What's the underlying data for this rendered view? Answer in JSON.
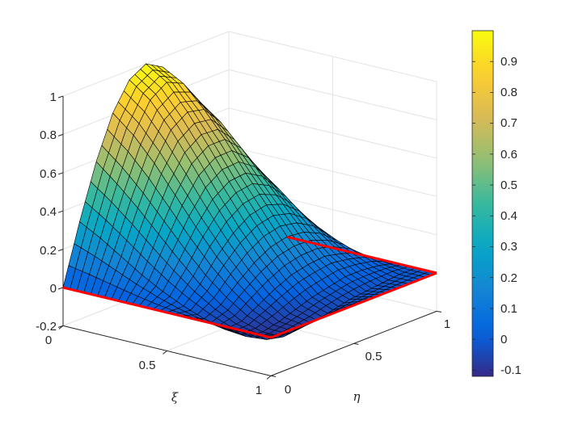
{
  "chart_data": {
    "type": "surface",
    "xlabel": "ξ",
    "ylabel": "η",
    "zlabel": "",
    "xlim": [
      0,
      1
    ],
    "ylim": [
      0,
      1
    ],
    "zlim": [
      -0.2,
      1
    ],
    "xticks": [
      "0",
      "0.5",
      "1"
    ],
    "yticks": [
      "0",
      "0.5",
      "1"
    ],
    "zticks": [
      "-0.2",
      "0",
      "0.2",
      "0.4",
      "0.6",
      "0.8",
      "1"
    ],
    "grid": true,
    "colormap": "parula",
    "clim": [
      -0.12,
      1.0
    ],
    "colorbar": {
      "position": "right",
      "ticks": [
        "-0.1",
        "0",
        "0.1",
        "0.2",
        "0.3",
        "0.4",
        "0.5",
        "0.6",
        "0.7",
        "0.8",
        "0.9"
      ]
    },
    "boundary_color": "#ff0000",
    "edge_color": "#000000",
    "x": [
      0,
      0.1,
      0.2,
      0.3,
      0.4,
      0.5,
      0.6,
      0.7,
      0.8,
      0.9,
      1.0
    ],
    "y": [
      0,
      0.1,
      0.2,
      0.3,
      0.4,
      0.5,
      0.6,
      0.7,
      0.8,
      0.9,
      1.0
    ],
    "z": [
      [
        0,
        0.31,
        0.59,
        0.81,
        0.95,
        1.0,
        0.95,
        0.81,
        0.59,
        0.31,
        0
      ],
      [
        0,
        0.25,
        0.5,
        0.72,
        0.87,
        0.93,
        0.89,
        0.76,
        0.56,
        0.3,
        0
      ],
      [
        0,
        0.18,
        0.4,
        0.6,
        0.74,
        0.8,
        0.78,
        0.68,
        0.5,
        0.27,
        0
      ],
      [
        0,
        0.11,
        0.29,
        0.46,
        0.59,
        0.65,
        0.65,
        0.57,
        0.43,
        0.24,
        0
      ],
      [
        0,
        0.05,
        0.18,
        0.32,
        0.43,
        0.49,
        0.5,
        0.45,
        0.35,
        0.2,
        0
      ],
      [
        0,
        0.0,
        0.08,
        0.19,
        0.28,
        0.34,
        0.36,
        0.33,
        0.26,
        0.15,
        0
      ],
      [
        0,
        -0.04,
        0.0,
        0.08,
        0.15,
        0.2,
        0.22,
        0.21,
        0.17,
        0.1,
        0
      ],
      [
        0,
        -0.07,
        -0.06,
        -0.01,
        0.04,
        0.08,
        0.1,
        0.11,
        0.09,
        0.06,
        0
      ],
      [
        0,
        -0.08,
        -0.09,
        -0.07,
        -0.04,
        -0.01,
        0.01,
        0.03,
        0.03,
        0.02,
        0
      ],
      [
        0,
        -0.07,
        -0.09,
        -0.08,
        -0.07,
        -0.05,
        -0.03,
        -0.02,
        -0.01,
        0.0,
        0
      ],
      [
        0,
        0,
        0,
        0,
        0,
        0,
        0,
        0,
        0,
        0,
        0
      ]
    ]
  }
}
